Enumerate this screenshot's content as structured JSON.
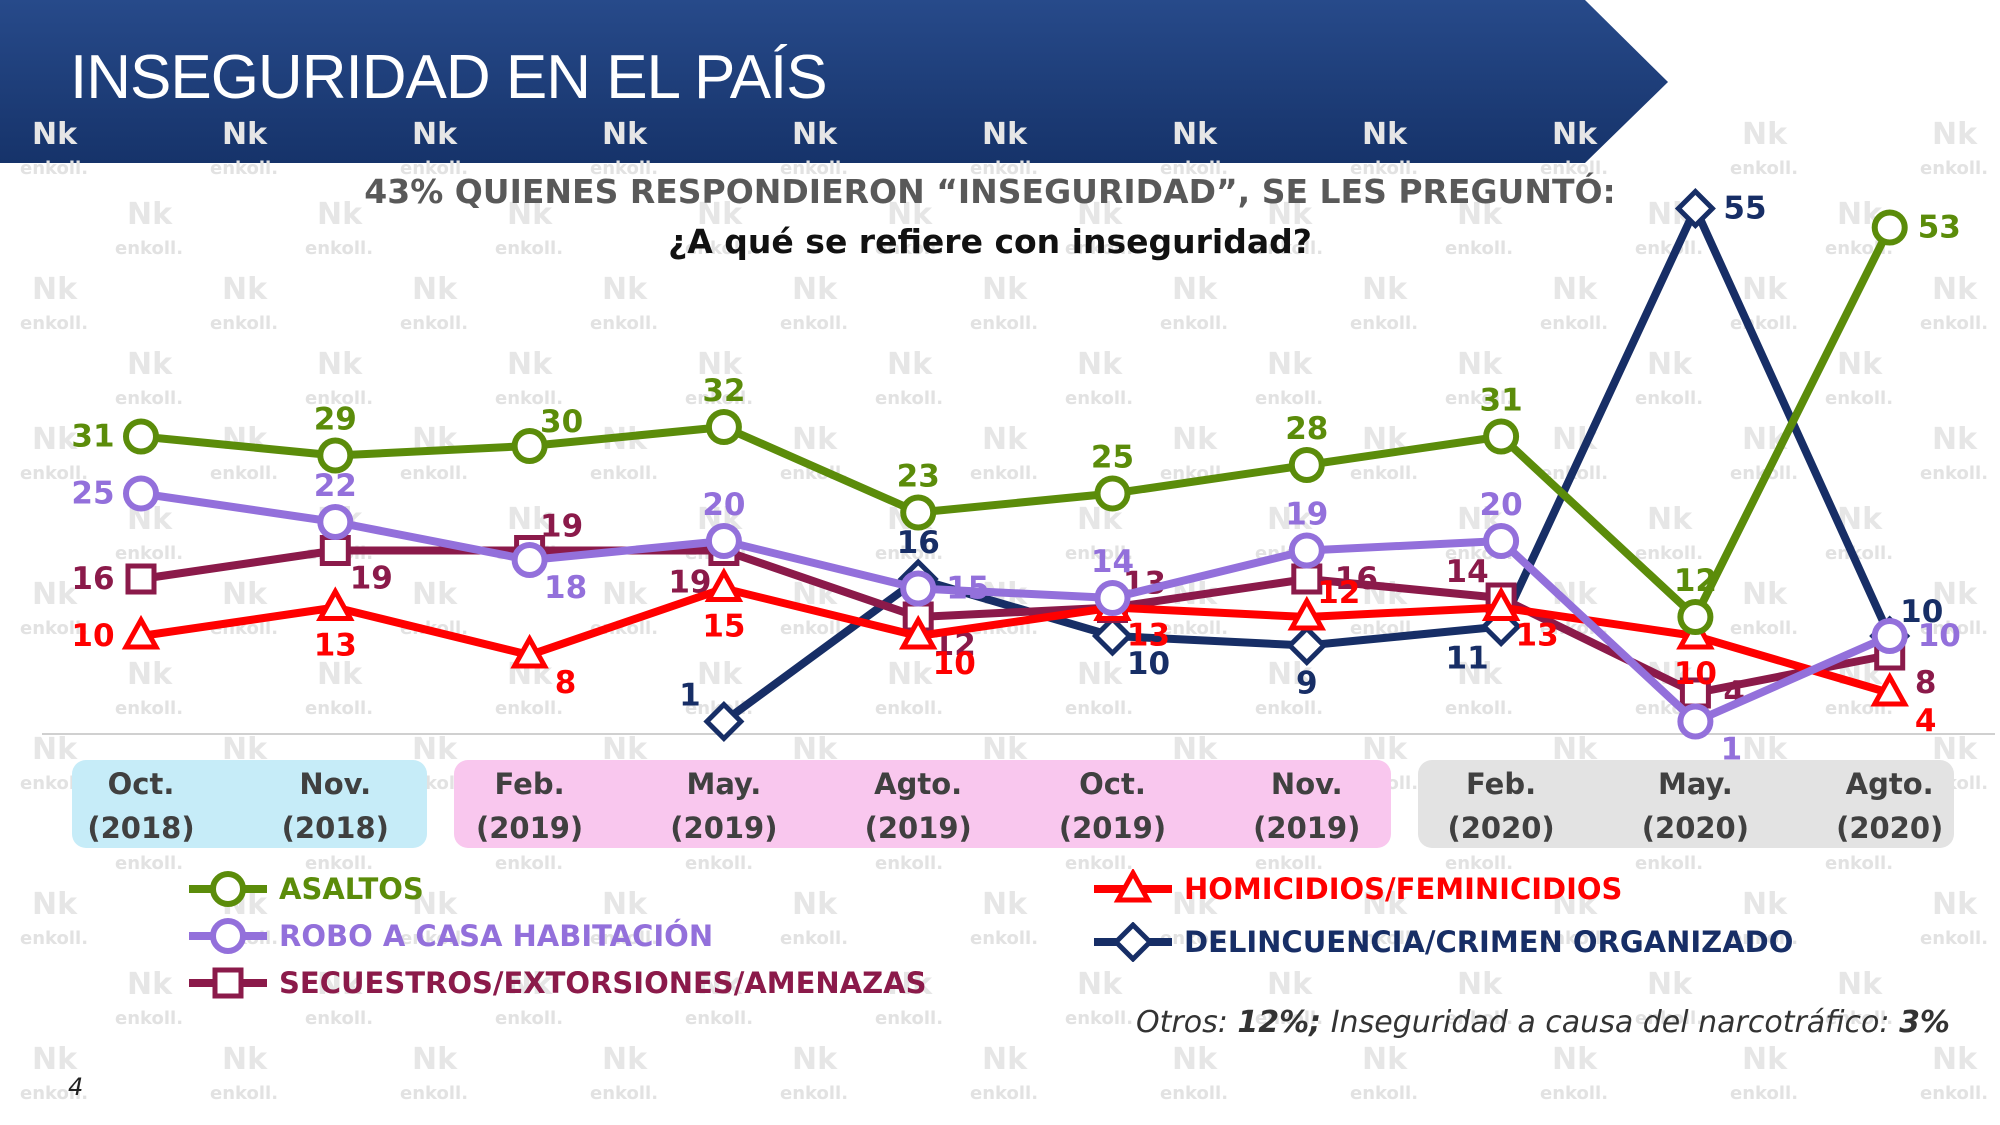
{
  "title": "INSEGURIDAD EN EL PAÍS",
  "subtitle": "43% QUIENES RESPONDIERON “INSEGURIDAD”, SE LES PREGUNTÓ:",
  "question": "¿A qué se refiere con inseguridad?",
  "footnote": {
    "otros_label": "Otros: ",
    "otros_value": "12%;",
    "narco_label": " Inseguridad a causa del narcotráfico: ",
    "narco_value": "3%"
  },
  "page_number": "4",
  "watermark_text": "enkoll.",
  "colors": {
    "banner": "#1f3f7a",
    "year_2018": "#c6ecf8",
    "year_2019": "#f9c7ee",
    "year_2020": "#e3e3e3",
    "axis": "#d0d0d0"
  },
  "chart_data": {
    "type": "line",
    "title": "¿A qué se refiere con inseguridad?",
    "xlabel": "",
    "ylabel": "",
    "ylim": [
      0,
      60
    ],
    "grid": false,
    "legend": "bottom",
    "categories": [
      [
        "Oct.",
        "(2018)"
      ],
      [
        "Nov.",
        "(2018)"
      ],
      [
        "Feb.",
        "(2019)"
      ],
      [
        "May.",
        "(2019)"
      ],
      [
        "Agto.",
        "(2019)"
      ],
      [
        "Oct.",
        "(2019)"
      ],
      [
        "Nov.",
        "(2019)"
      ],
      [
        "Feb.",
        "(2020)"
      ],
      [
        "May.",
        "(2020)"
      ],
      [
        "Agto.",
        "(2020)"
      ]
    ],
    "year_groups": [
      {
        "year": "2018",
        "from": 0,
        "to": 1
      },
      {
        "year": "2019",
        "from": 2,
        "to": 6
      },
      {
        "year": "2020",
        "from": 7,
        "to": 9
      }
    ],
    "series": [
      {
        "name": "ASALTOS",
        "color": "#5b8c0a",
        "marker": "circle",
        "values": [
          31,
          29,
          30,
          32,
          23,
          25,
          28,
          31,
          12,
          53
        ],
        "label_pos": [
          "left",
          "above",
          "aboveright",
          "above",
          "above",
          "above",
          "above",
          "above",
          "above",
          "right"
        ]
      },
      {
        "name": "ROBO A CASA HABITACIÓN",
        "color": "#9370db",
        "marker": "circle",
        "values": [
          25,
          22,
          18,
          20,
          15,
          14,
          19,
          20,
          1,
          10
        ],
        "label_pos": [
          "left",
          "above",
          "belowright",
          "above",
          "right",
          "above",
          "above",
          "above",
          "belowright",
          "right"
        ]
      },
      {
        "name": "SECUESTROS/EXTORSIONES/AMENAZAS",
        "color": "#8b1a4a",
        "marker": "square",
        "values": [
          16,
          19,
          19,
          19,
          12,
          13,
          16,
          14,
          4,
          8
        ],
        "label_pos": [
          "left",
          "belowright",
          "aboveright",
          "belowleft",
          "belowright",
          "aboveright",
          "right",
          "aboveleft",
          "right",
          "belowright"
        ]
      },
      {
        "name": "HOMICIDIOS/FEMINICIDIOS",
        "color": "#ff0000",
        "marker": "triangle",
        "values": [
          10,
          13,
          8,
          15,
          10,
          13,
          12,
          13,
          10,
          4
        ],
        "label_pos": [
          "left",
          "below",
          "belowright",
          "below",
          "belowright",
          "belowright",
          "aboveright",
          "belowright",
          "below",
          "belowright"
        ]
      },
      {
        "name": "DELINCUENCIA/CRIMEN ORGANIZADO",
        "color": "#172e66",
        "marker": "diamond",
        "values": [
          null,
          null,
          null,
          1,
          16,
          10,
          9,
          11,
          55,
          10
        ],
        "label_pos": [
          "",
          "",
          "",
          "aboveleft",
          "above",
          "belowright",
          "below",
          "belowleft",
          "right",
          "aboveright"
        ]
      }
    ]
  }
}
